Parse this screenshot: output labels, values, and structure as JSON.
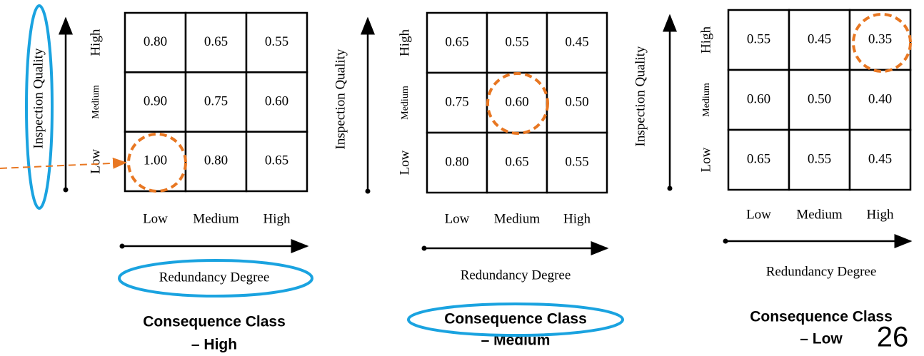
{
  "panels": [
    {
      "y_axis_label": "Inspection Quality",
      "y_levels": [
        "High",
        "Medium",
        "Low"
      ],
      "x_levels": [
        "Low",
        "Medium",
        "High"
      ],
      "x_axis_label": "Redundancy Degree",
      "rows": [
        [
          "0.80",
          "0.65",
          "0.55"
        ],
        [
          "0.90",
          "0.75",
          "0.60"
        ],
        [
          "1.00",
          "0.80",
          "0.65"
        ]
      ],
      "caption": [
        "Consequence Class",
        "– High"
      ]
    },
    {
      "y_axis_label": "Inspection Quality",
      "y_levels": [
        "High",
        "Medium",
        "Low"
      ],
      "x_levels": [
        "Low",
        "Medium",
        "High"
      ],
      "x_axis_label": "Redundancy Degree",
      "rows": [
        [
          "0.65",
          "0.55",
          "0.45"
        ],
        [
          "0.75",
          "0.60",
          "0.50"
        ],
        [
          "0.80",
          "0.65",
          "0.55"
        ]
      ],
      "caption": [
        "Consequence Class",
        "– Medium"
      ]
    },
    {
      "y_axis_label": "Inspection Quality",
      "y_levels": [
        "High",
        "Medium",
        "Low"
      ],
      "x_levels": [
        "Low",
        "Medium",
        "High"
      ],
      "x_axis_label": "Redundancy Degree",
      "rows": [
        [
          "0.55",
          "0.45",
          "0.35"
        ],
        [
          "0.60",
          "0.50",
          "0.40"
        ],
        [
          "0.65",
          "0.55",
          "0.45"
        ]
      ],
      "caption": [
        "Consequence Class",
        "– Low"
      ]
    }
  ],
  "page_number": "26"
}
